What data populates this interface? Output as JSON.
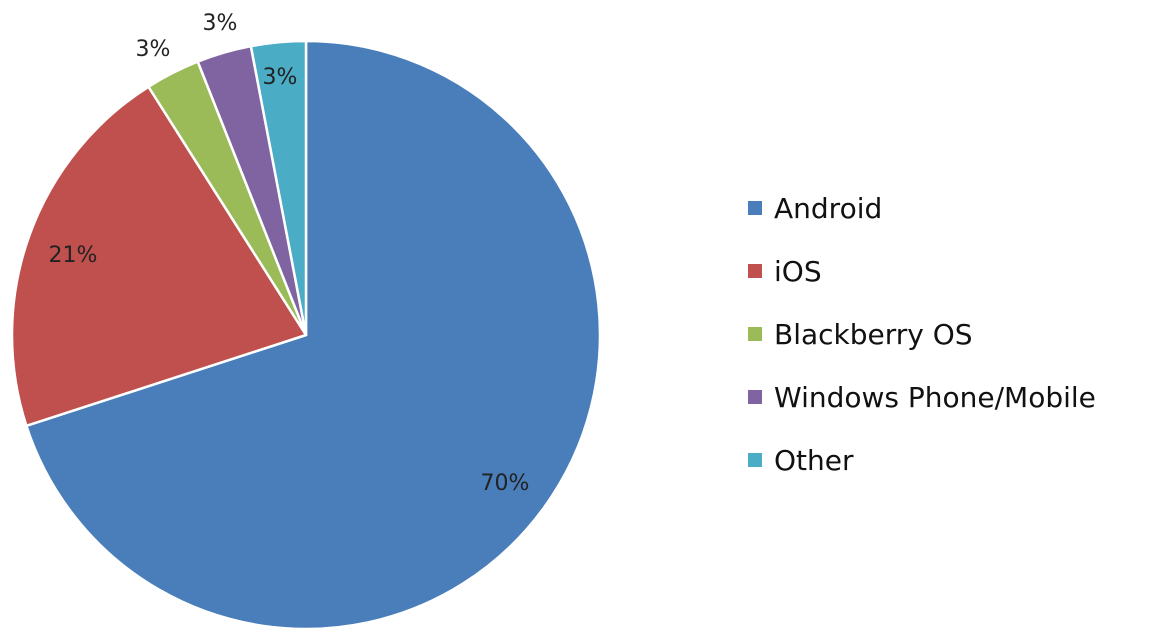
{
  "chart_data": {
    "type": "pie",
    "title": "",
    "categories": [
      "Android",
      "iOS",
      "Blackberry OS",
      "Windows Phone/Mobile",
      "Other"
    ],
    "values": [
      70,
      21,
      3,
      3,
      3
    ],
    "data_labels": [
      "70%",
      "21%",
      "3%",
      "3%",
      "3%"
    ],
    "colors": [
      "#4a7ebb",
      "#c0504d",
      "#9bbb59",
      "#8064a2",
      "#4bacc6"
    ],
    "start_angle_deg": 0,
    "direction": "clockwise",
    "legend_position": "right"
  }
}
